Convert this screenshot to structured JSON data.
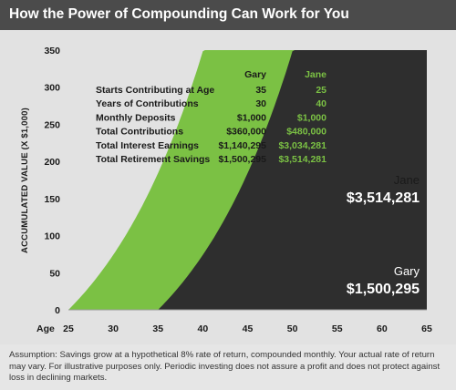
{
  "title": "How the Power of Compounding Can Work for You",
  "footnote": "Assumption: Savings grow at a hypothetical 8% rate of return, compounded monthly. Your actual rate of return may vary. For illustrative purposes only. Periodic investing does not assure a profit and does not protect against loss in declining markets.",
  "colors": {
    "title_bar": "#4b4b4b",
    "jane": "#7bc144",
    "gary": "#2e2e2e",
    "background": "#e2e2e2"
  },
  "chart_data": {
    "type": "area",
    "ylabel": "ACCUMULATED VALUE (X $1,000)",
    "xlabel": "Age",
    "xlim": [
      25,
      65
    ],
    "ylim": [
      0,
      350
    ],
    "x_ticks": [
      25,
      30,
      35,
      40,
      45,
      50,
      55,
      60,
      65
    ],
    "y_ticks": [
      0,
      50,
      100,
      150,
      200,
      250,
      300,
      350
    ],
    "series": [
      {
        "name": "Jane",
        "start_age": 25,
        "monthly_deposit": 1000,
        "annual_rate": 0.08,
        "final_label": "$3,514,281",
        "color": "#7bc144"
      },
      {
        "name": "Gary",
        "start_age": 35,
        "monthly_deposit": 1000,
        "annual_rate": 0.08,
        "final_label": "$1,500,295",
        "color": "#2e2e2e"
      }
    ],
    "table": {
      "headers": [
        "Gary",
        "Jane"
      ],
      "rows": [
        {
          "label": "Starts Contributing at Age",
          "gary": "35",
          "jane": "25"
        },
        {
          "label": "Years of Contributions",
          "gary": "30",
          "jane": "40"
        },
        {
          "label": "Monthly Deposits",
          "gary": "$1,000",
          "jane": "$1,000"
        },
        {
          "label": "Total Contributions",
          "gary": "$360,000",
          "jane": "$480,000"
        },
        {
          "label": "Total Interest Earnings",
          "gary": "$1,140,295",
          "jane": "$3,034,281"
        },
        {
          "label": "Total Retirement Savings",
          "gary": "$1,500,295",
          "jane": "$3,514,281"
        }
      ]
    }
  }
}
